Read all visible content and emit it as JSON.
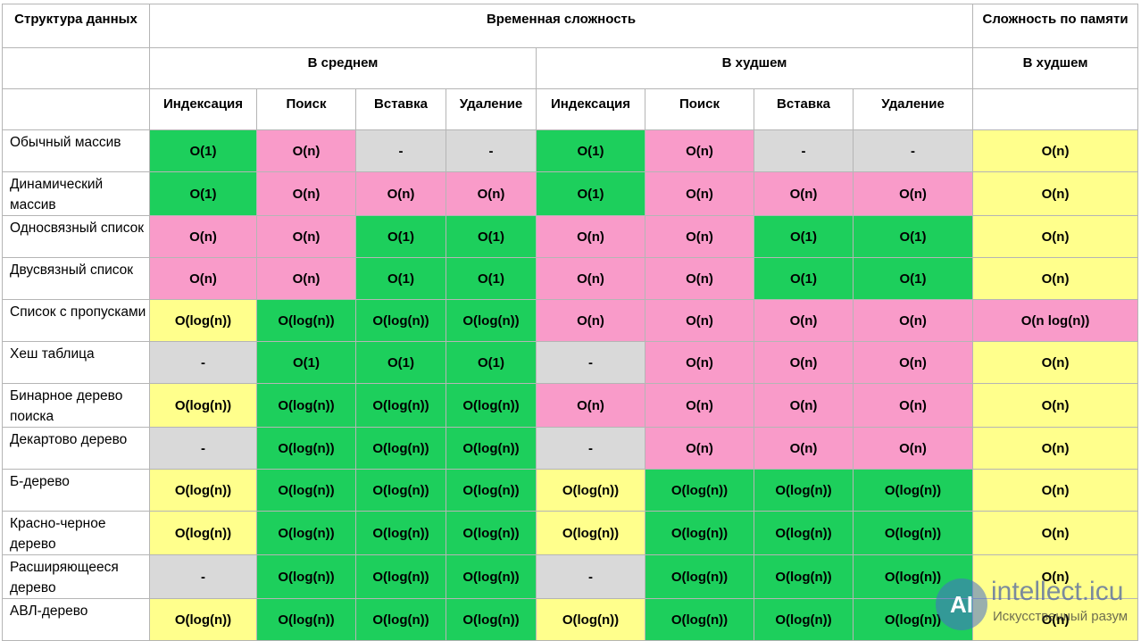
{
  "header": {
    "structure": "Структура данных",
    "time": "Временная сложность",
    "space": "Сложность по памяти",
    "average": "В среднем",
    "worst_time": "В худшем",
    "worst_space": "В худшем",
    "operations_average": [
      "Индексация",
      "Поиск",
      "Вставка",
      "Удаление"
    ],
    "operations_worst": [
      "Индексация",
      "Поиск",
      "Вставка",
      "Удаление"
    ]
  },
  "rows": [
    {
      "label": "Обычный массив",
      "cells": [
        "O(1)",
        "O(n)",
        "-",
        "-",
        "O(1)",
        "O(n)",
        "-",
        "-",
        "O(n)"
      ],
      "colors": [
        "#1dcf5c",
        "#f99bc9",
        "#d9d9d9",
        "#d9d9d9",
        "#1dcf5c",
        "#f99bc9",
        "#d9d9d9",
        "#d9d9d9",
        "#ffff8c"
      ]
    },
    {
      "label": "Динамический массив",
      "cells": [
        "O(1)",
        "O(n)",
        "O(n)",
        "O(n)",
        "O(1)",
        "O(n)",
        "O(n)",
        "O(n)",
        "O(n)"
      ],
      "colors": [
        "#1dcf5c",
        "#f99bc9",
        "#f99bc9",
        "#f99bc9",
        "#1dcf5c",
        "#f99bc9",
        "#f99bc9",
        "#f99bc9",
        "#ffff8c"
      ]
    },
    {
      "label": "Односвязный список",
      "cells": [
        "O(n)",
        "O(n)",
        "O(1)",
        "O(1)",
        "O(n)",
        "O(n)",
        "O(1)",
        "O(1)",
        "O(n)"
      ],
      "colors": [
        "#f99bc9",
        "#f99bc9",
        "#1dcf5c",
        "#1dcf5c",
        "#f99bc9",
        "#f99bc9",
        "#1dcf5c",
        "#1dcf5c",
        "#ffff8c"
      ]
    },
    {
      "label": "Двусвязный список",
      "cells": [
        "O(n)",
        "O(n)",
        "O(1)",
        "O(1)",
        "O(n)",
        "O(n)",
        "O(1)",
        "O(1)",
        "O(n)"
      ],
      "colors": [
        "#f99bc9",
        "#f99bc9",
        "#1dcf5c",
        "#1dcf5c",
        "#f99bc9",
        "#f99bc9",
        "#1dcf5c",
        "#1dcf5c",
        "#ffff8c"
      ]
    },
    {
      "label": "Список с пропусками",
      "cells": [
        "O(log(n))",
        "O(log(n))",
        "O(log(n))",
        "O(log(n))",
        "O(n)",
        "O(n)",
        "O(n)",
        "O(n)",
        "O(n log(n))"
      ],
      "colors": [
        "#ffff8c",
        "#1dcf5c",
        "#1dcf5c",
        "#1dcf5c",
        "#f99bc9",
        "#f99bc9",
        "#f99bc9",
        "#f99bc9",
        "#f99bc9"
      ]
    },
    {
      "label": "Хеш таблица",
      "cells": [
        "-",
        "O(1)",
        "O(1)",
        "O(1)",
        "-",
        "O(n)",
        "O(n)",
        "O(n)",
        "O(n)"
      ],
      "colors": [
        "#d9d9d9",
        "#1dcf5c",
        "#1dcf5c",
        "#1dcf5c",
        "#d9d9d9",
        "#f99bc9",
        "#f99bc9",
        "#f99bc9",
        "#ffff8c"
      ]
    },
    {
      "label": "Бинарное дерево поиска",
      "cells": [
        "O(log(n))",
        "O(log(n))",
        "O(log(n))",
        "O(log(n))",
        "O(n)",
        "O(n)",
        "O(n)",
        "O(n)",
        "O(n)"
      ],
      "colors": [
        "#ffff8c",
        "#1dcf5c",
        "#1dcf5c",
        "#1dcf5c",
        "#f99bc9",
        "#f99bc9",
        "#f99bc9",
        "#f99bc9",
        "#ffff8c"
      ]
    },
    {
      "label": "Декартово дерево",
      "cells": [
        "-",
        "O(log(n))",
        "O(log(n))",
        "O(log(n))",
        "-",
        "O(n)",
        "O(n)",
        "O(n)",
        "O(n)"
      ],
      "colors": [
        "#d9d9d9",
        "#1dcf5c",
        "#1dcf5c",
        "#1dcf5c",
        "#d9d9d9",
        "#f99bc9",
        "#f99bc9",
        "#f99bc9",
        "#ffff8c"
      ]
    },
    {
      "label": "Б-дерево",
      "cells": [
        "O(log(n))",
        "O(log(n))",
        "O(log(n))",
        "O(log(n))",
        "O(log(n))",
        "O(log(n))",
        "O(log(n))",
        "O(log(n))",
        "O(n)"
      ],
      "colors": [
        "#ffff8c",
        "#1dcf5c",
        "#1dcf5c",
        "#1dcf5c",
        "#ffff8c",
        "#1dcf5c",
        "#1dcf5c",
        "#1dcf5c",
        "#ffff8c"
      ]
    },
    {
      "label": "Красно-черное дерево",
      "cells": [
        "O(log(n))",
        "O(log(n))",
        "O(log(n))",
        "O(log(n))",
        "O(log(n))",
        "O(log(n))",
        "O(log(n))",
        "O(log(n))",
        "O(n)"
      ],
      "colors": [
        "#ffff8c",
        "#1dcf5c",
        "#1dcf5c",
        "#1dcf5c",
        "#ffff8c",
        "#1dcf5c",
        "#1dcf5c",
        "#1dcf5c",
        "#ffff8c"
      ]
    },
    {
      "label": "Расширяющееся дерево",
      "cells": [
        "-",
        "O(log(n))",
        "O(log(n))",
        "O(log(n))",
        "-",
        "O(log(n))",
        "O(log(n))",
        "O(log(n))",
        "O(n)"
      ],
      "colors": [
        "#d9d9d9",
        "#1dcf5c",
        "#1dcf5c",
        "#1dcf5c",
        "#d9d9d9",
        "#1dcf5c",
        "#1dcf5c",
        "#1dcf5c",
        "#ffff8c"
      ]
    },
    {
      "label": "АВЛ-дерево",
      "cells": [
        "O(log(n))",
        "O(log(n))",
        "O(log(n))",
        "O(log(n))",
        "O(log(n))",
        "O(log(n))",
        "O(log(n))",
        "O(log(n))",
        "O(n)"
      ],
      "colors": [
        "#ffff8c",
        "#1dcf5c",
        "#1dcf5c",
        "#1dcf5c",
        "#ffff8c",
        "#1dcf5c",
        "#1dcf5c",
        "#1dcf5c",
        "#ffff8c"
      ]
    }
  ],
  "watermark": {
    "logo": "AI",
    "title": "intellect.icu",
    "subtitle": "Искусственный разум"
  }
}
